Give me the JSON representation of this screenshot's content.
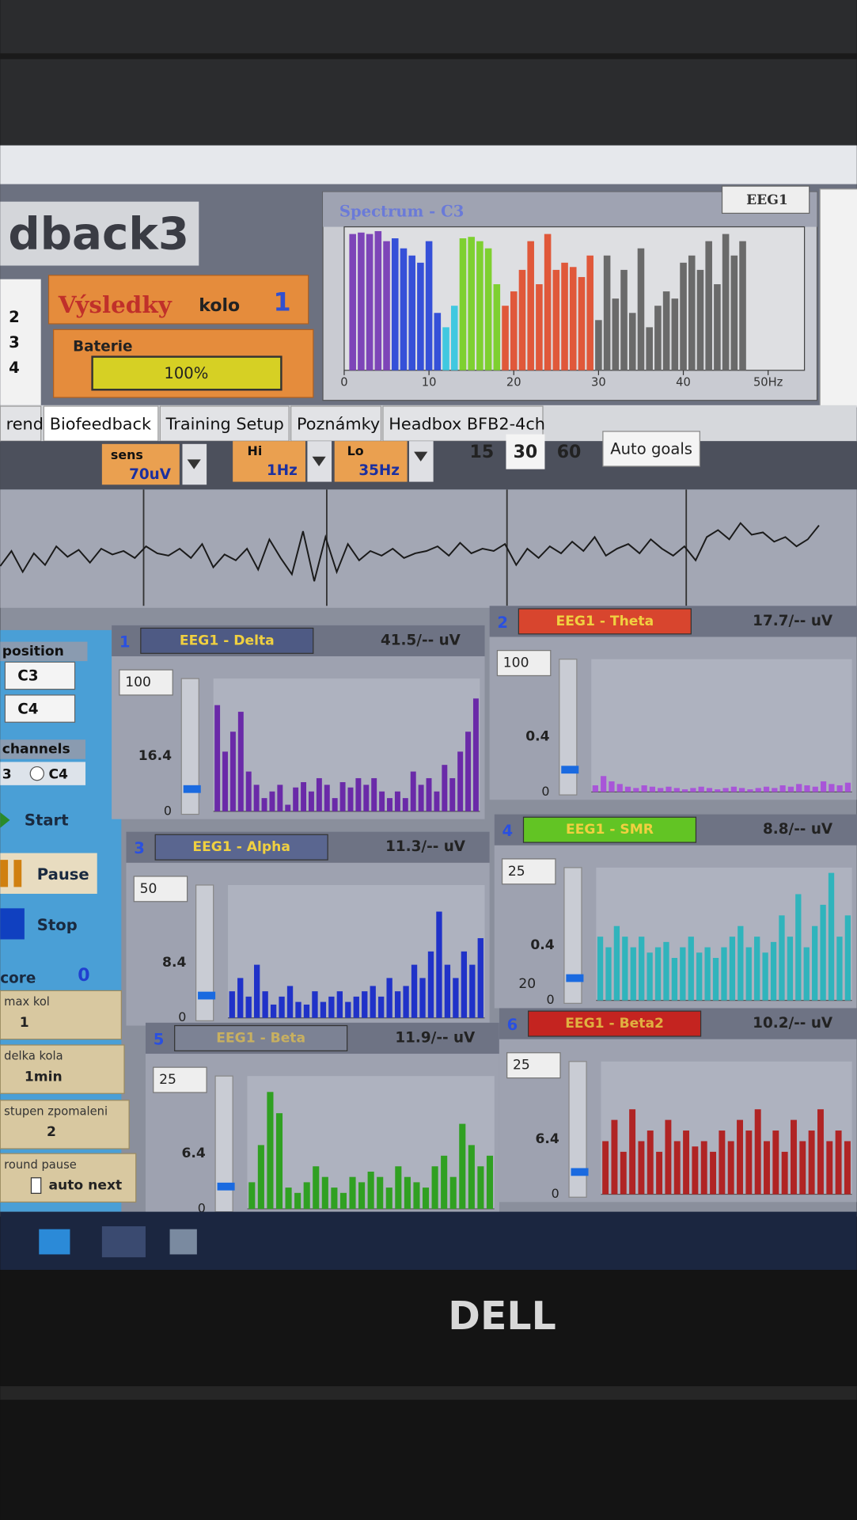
{
  "logo": "dback3",
  "left_numbers": [
    "2",
    "3",
    "4"
  ],
  "results": {
    "title": "Výsledky",
    "kolo_label": "kolo",
    "kolo": "1"
  },
  "battery": {
    "label": "Baterie",
    "value": "100%"
  },
  "spectrum": {
    "title": "Spectrum - C3",
    "channel": "EEG1",
    "xlim": [
      0,
      52
    ],
    "ylim": [
      0,
      100
    ],
    "xticks": [
      0,
      10,
      20,
      30,
      40,
      {
        "value": 50,
        "label": "50Hz"
      }
    ],
    "series": [
      {
        "color": "#7d45b8",
        "x": [
          1,
          2,
          3,
          4,
          5
        ],
        "values": [
          95,
          96,
          95,
          97,
          90
        ]
      },
      {
        "color": "#3550d8",
        "x": [
          6,
          7,
          8,
          9,
          10,
          11
        ],
        "values": [
          92,
          85,
          80,
          75,
          90,
          40
        ]
      },
      {
        "color": "#40c8e0",
        "x": [
          12,
          13
        ],
        "values": [
          30,
          45
        ]
      },
      {
        "color": "#7ed030",
        "x": [
          14,
          15,
          16,
          17,
          18
        ],
        "values": [
          92,
          93,
          90,
          85,
          60
        ]
      },
      {
        "color": "#e0583a",
        "x": [
          19,
          20,
          21,
          22,
          23,
          24,
          25,
          26,
          27,
          28,
          29
        ],
        "values": [
          45,
          55,
          70,
          90,
          60,
          95,
          70,
          75,
          72,
          65,
          80
        ]
      },
      {
        "color": "#6a6a6a",
        "x": [
          30,
          31,
          32,
          33,
          34,
          35,
          36,
          37,
          38,
          39,
          40,
          41,
          42,
          43,
          44,
          45,
          46,
          47
        ],
        "values": [
          35,
          80,
          50,
          70,
          40,
          85,
          30,
          45,
          55,
          50,
          75,
          80,
          70,
          90,
          60,
          95,
          80,
          90
        ]
      }
    ]
  },
  "tabs": [
    "rend",
    "Biofeedback",
    "Training Setup",
    "Poznámky",
    "Headbox BFB2-4ch"
  ],
  "controls": {
    "sens_label": "sens",
    "sens": "70uV",
    "hi_label": "Hi",
    "hi": "1Hz",
    "lo_label": "Lo",
    "lo": "35Hz",
    "windows": [
      "15",
      "30",
      "60"
    ],
    "auto_goals": "Auto goals"
  },
  "eeg_trace": [
    -5,
    8,
    -10,
    6,
    -4,
    12,
    3,
    9,
    -2,
    10,
    5,
    8,
    2,
    12,
    6,
    4,
    10,
    2,
    14,
    -6,
    5,
    0,
    10,
    -8,
    18,
    2,
    -12,
    25,
    -18,
    20,
    -10,
    14,
    0,
    8,
    4,
    10,
    2,
    6,
    8,
    12,
    4,
    15,
    6,
    10,
    8,
    14,
    -4,
    10,
    2,
    12,
    6,
    16,
    8,
    20,
    4,
    10,
    14,
    6,
    18,
    10,
    4,
    12,
    0,
    20,
    26,
    18,
    32,
    22,
    24,
    16,
    20,
    12,
    18,
    30
  ],
  "left_panel": {
    "position": "position",
    "channel_a": "C3",
    "channel_b": "C4",
    "channels": "channels",
    "channels_a": "3",
    "channels_b": "C4",
    "start": "Start",
    "pause": "Pause",
    "stop": "Stop",
    "score_label": "core",
    "score": "0",
    "max_kol_label": "max kol",
    "max_kol": "1",
    "delka_kola_label": "delka kola",
    "delka_kola": "1min",
    "stupen_label": "stupen zpomaleni",
    "stupen": "2",
    "round_pause_label": "round pause",
    "auto_next": "auto next"
  },
  "panels": [
    {
      "num": "1",
      "name": "EEG1 - Delta",
      "reading": "41.5/-- uV",
      "scale": 100,
      "threshold": 16.4,
      "zero": 0,
      "color": "#6a2aa8",
      "header_color": "#4e5a84",
      "name_color": "#f0d040",
      "values": [
        80,
        45,
        60,
        75,
        30,
        20,
        10,
        15,
        20,
        5,
        18,
        22,
        15,
        25,
        20,
        10,
        22,
        18,
        25,
        20,
        25,
        15,
        10,
        15,
        10,
        30,
        20,
        25,
        15,
        35,
        25,
        45,
        60,
        85
      ]
    },
    {
      "num": "2",
      "name": "EEG1 - Theta",
      "reading": "17.7/-- uV",
      "scale": 100,
      "threshold": 0.4,
      "zero": 0,
      "color": "#a855d8",
      "header_color": "#d8452e",
      "name_color": "#f0d040",
      "values": [
        5,
        12,
        8,
        6,
        4,
        3,
        5,
        4,
        3,
        4,
        3,
        2,
        3,
        4,
        3,
        2,
        3,
        4,
        3,
        2,
        3,
        4,
        3,
        5,
        4,
        6,
        5,
        4,
        8,
        6,
        5,
        7
      ]
    },
    {
      "num": "3",
      "name": "EEG1 - Alpha",
      "reading": "11.3/-- uV",
      "scale": 50,
      "threshold": 8.4,
      "zero": 0,
      "color": "#2032c8",
      "header_color": "#5a6690",
      "name_color": "#f0d040",
      "values": [
        10,
        15,
        8,
        20,
        10,
        5,
        8,
        12,
        6,
        5,
        10,
        6,
        8,
        10,
        6,
        8,
        10,
        12,
        8,
        15,
        10,
        12,
        20,
        15,
        25,
        40,
        20,
        15,
        25,
        20,
        30
      ]
    },
    {
      "num": "4",
      "name": "EEG1 - SMR",
      "reading": "8.8/-- uV",
      "scale": 25,
      "threshold": 0.4,
      "zero": 0,
      "extra": "20",
      "color": "#30b4bc",
      "header_color": "#62c424",
      "name_color": "#f0d040",
      "values": [
        12,
        10,
        14,
        12,
        10,
        12,
        9,
        10,
        11,
        8,
        10,
        12,
        9,
        10,
        8,
        10,
        12,
        14,
        10,
        12,
        9,
        11,
        16,
        12,
        20,
        10,
        14,
        18,
        24,
        12,
        16
      ]
    },
    {
      "num": "5",
      "name": "EEG1 - Beta",
      "reading": "11.9/-- uV",
      "scale": 25,
      "threshold": 6.4,
      "zero": 0,
      "color": "#30a022",
      "header_color": "#7c8294",
      "name_color": "#c8b060",
      "values": [
        5,
        12,
        22,
        18,
        4,
        3,
        5,
        8,
        6,
        4,
        3,
        6,
        5,
        7,
        6,
        4,
        8,
        6,
        5,
        4,
        8,
        10,
        6,
        16,
        12,
        8,
        10
      ]
    },
    {
      "num": "6",
      "name": "EEG1 - Beta2",
      "reading": "10.2/-- uV",
      "scale": 25,
      "threshold": 6.4,
      "zero": 0,
      "color": "#b02424",
      "header_color": "#c42420",
      "name_color": "#e0b040",
      "values": [
        10,
        14,
        8,
        16,
        10,
        12,
        8,
        14,
        10,
        12,
        9,
        10,
        8,
        12,
        10,
        14,
        12,
        16,
        10,
        12,
        8,
        14,
        10,
        12,
        16,
        10,
        12,
        10
      ]
    }
  ],
  "brand": "DELL"
}
